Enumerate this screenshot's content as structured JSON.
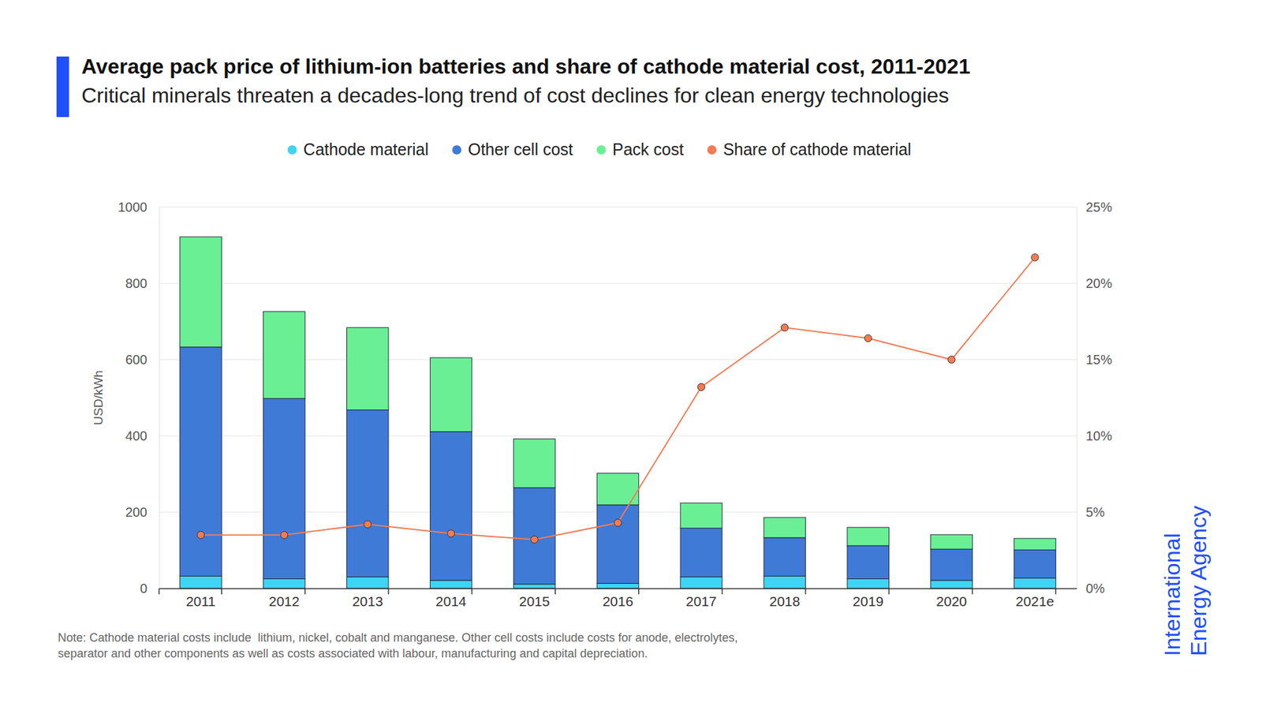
{
  "chart_data": {
    "type": "bar",
    "title": "Average pack price of lithium-ion batteries and share of cathode material cost, 2011-2021",
    "subtitle": "Critical minerals threaten a decades-long trend of cost declines for clean energy technologies",
    "stacked": true,
    "grid": true,
    "legend": "top",
    "y_label": "USD/kWh",
    "categories": [
      "2011",
      "2012",
      "2013",
      "2014",
      "2015",
      "2016",
      "2017",
      "2018",
      "2019",
      "2020",
      "2021e"
    ],
    "series": [
      {
        "name": "Cathode material",
        "color": "#3fd4f4",
        "values": [
          32,
          25,
          30,
          21,
          11,
          13,
          30,
          32,
          25,
          21,
          27
        ]
      },
      {
        "name": "Other cell cost",
        "color": "#3f7ad6",
        "values": [
          601,
          473,
          438,
          390,
          253,
          206,
          128,
          101,
          87,
          82,
          74
        ]
      },
      {
        "name": "Pack cost",
        "color": "#6bef95",
        "values": [
          289,
          228,
          216,
          194,
          128,
          83,
          66,
          53,
          48,
          38,
          30
        ]
      },
      {
        "name": "Share of cathode material",
        "type": "line",
        "axis": "y2",
        "marker": "circle",
        "color": "#f47b54",
        "values": [
          3.5,
          3.5,
          4.2,
          3.6,
          3.2,
          4.3,
          13.2,
          17.1,
          16.4,
          15.0,
          21.7
        ]
      }
    ],
    "ylim": [
      0,
      1000
    ],
    "yticks": [
      0,
      200,
      400,
      600,
      800,
      1000
    ],
    "y2lim": [
      0,
      25
    ],
    "y2ticks": [
      {
        "value": 0,
        "label": "0%"
      },
      {
        "value": 5,
        "label": "5%"
      },
      {
        "value": 10,
        "label": "10%"
      },
      {
        "value": 15,
        "label": "15%"
      },
      {
        "value": 20,
        "label": "20%"
      },
      {
        "value": 25,
        "label": "25%"
      }
    ],
    "note": [
      "Note: Cathode material costs include  lithium, nickel, cobalt and manganese. Other cell costs include costs for anode, electrolytes,",
      "separator and other components as well as costs associated with labour, manufacturing and capital depreciation."
    ],
    "source": [
      "International",
      "Energy Agency"
    ]
  }
}
